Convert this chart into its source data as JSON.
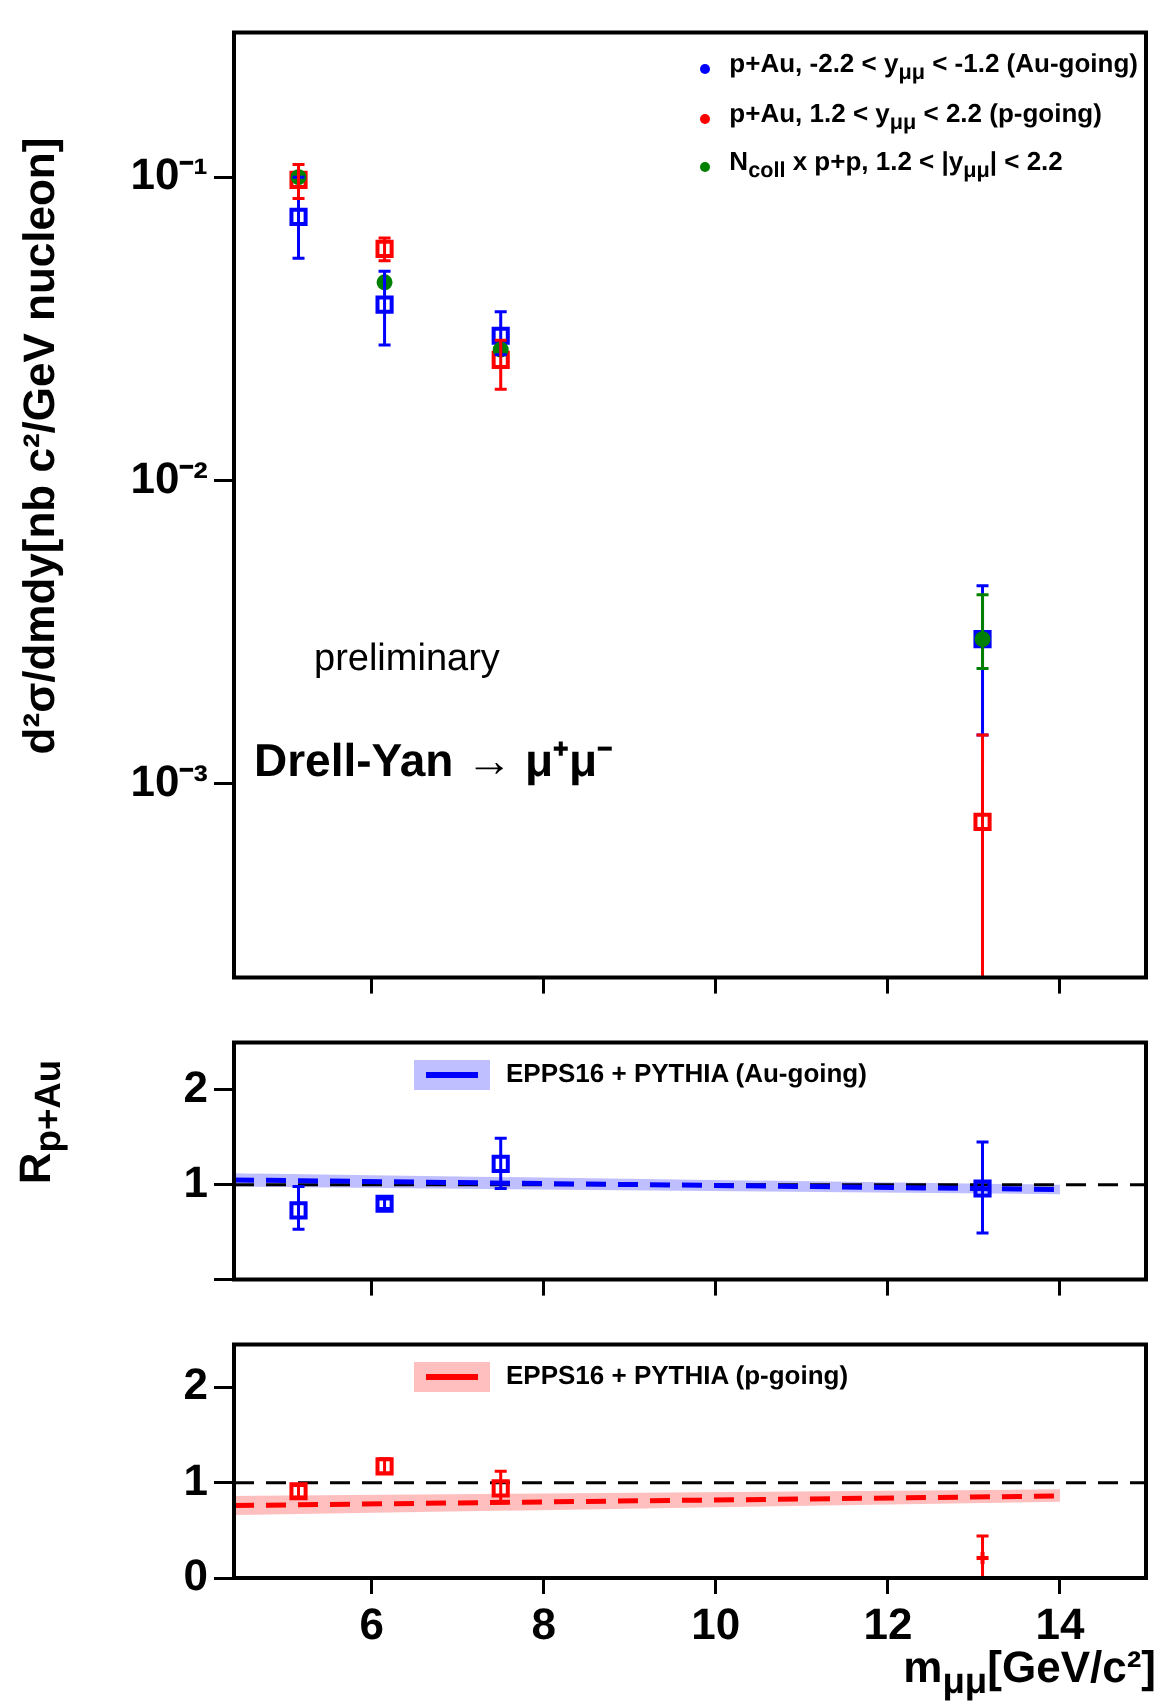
{
  "chart_data": [
    {
      "type": "scatter",
      "ylabel": "d²σ/dmdy[nb c²/GeV nucleon]",
      "log": "y",
      "xlim": [
        4.4,
        15
      ],
      "xticks": [
        6,
        8,
        10,
        12,
        14
      ],
      "ylim": [
        0.00023,
        0.3
      ],
      "yticks": [
        {
          "value": 0.001,
          "label": "10⁻³"
        },
        {
          "value": 0.01,
          "label": "10⁻²"
        },
        {
          "value": 0.1,
          "label": "10⁻¹"
        }
      ],
      "tick_labels": "y",
      "legend": "top right",
      "grid": false,
      "annotations": [
        "preliminary",
        "Drell-Yan → μ⁺μ⁻"
      ],
      "series": [
        {
          "name": "p+Au, -2.2 < y$_{μμ}$ < -1.2 (Au-going)",
          "color": "#0000ff",
          "marker": "square",
          "x": [
            5.15,
            6.15,
            7.5,
            13.1
          ],
          "values": [
            0.074,
            0.038,
            0.03,
            0.003
          ],
          "errors": [
            [
              0.054,
              0.1
            ],
            [
              0.028,
              0.049
            ],
            [
              0.026,
              0.036
            ],
            [
              0.00145,
              0.0045
            ]
          ]
        },
        {
          "name": "p+Au, 1.2 < y$_{μμ}$ < 2.2 (p-going)",
          "color": "#ff0000",
          "marker": "square",
          "x": [
            5.15,
            6.15,
            7.5,
            13.1
          ],
          "values": [
            0.098,
            0.058,
            0.025,
            0.00075
          ],
          "errors": [
            [
              0.085,
              0.11
            ],
            [
              0.053,
              0.063
            ],
            [
              0.02,
              0.029
            ],
            [
              0.00023,
              0.00145
            ]
          ]
        },
        {
          "name": "N$_{coll}$ x p+p, 1.2 < |y$_{μμ}$| < 2.2",
          "color": "#008000",
          "marker": "circle",
          "x": [
            5.15,
            6.15,
            7.5,
            13.1
          ],
          "values": [
            0.1,
            0.045,
            0.027,
            0.003
          ],
          "errors": [
            null,
            null,
            null,
            [
              0.0024,
              0.0042
            ]
          ]
        }
      ]
    },
    {
      "type": "scatter",
      "ylabel": "R$_{p+Au}$",
      "xlim": [
        4.4,
        15
      ],
      "xticks": [
        6,
        8,
        10,
        12,
        14
      ],
      "ylim": [
        0,
        2.5
      ],
      "yticks": [
        {
          "value": 0,
          "label": null
        },
        1,
        2
      ],
      "tick_labels": "y",
      "legend": "top",
      "grid": false,
      "ref_lines": [
        {
          "axis": "y",
          "value": 1,
          "color": "#000000",
          "line_style": "dashed"
        }
      ],
      "series": [
        {
          "type": "line",
          "name": "EPPS16 + PYTHIA (Au-going)",
          "color": "#0000ff",
          "marker": "none",
          "line_style": "dashed",
          "x": [
            4.4,
            14
          ],
          "values": [
            1.05,
            0.95
          ],
          "lower": [
            0.98,
            0.9
          ],
          "upper": [
            1.12,
            1.0
          ]
        },
        {
          "color": "#0000ff",
          "marker": "square",
          "x": [
            5.15,
            6.15,
            7.5,
            13.1
          ],
          "values": [
            0.73,
            0.8,
            1.22,
            0.96
          ],
          "errors": [
            [
              0.53,
              0.98
            ],
            [
              0.75,
              0.85
            ],
            [
              0.96,
              1.49
            ],
            [
              0.49,
              1.45
            ]
          ]
        }
      ]
    },
    {
      "type": "scatter",
      "xlabel": "m$_{μμ}$[GeV/c²]",
      "xlim": [
        4.4,
        15
      ],
      "xticks": [
        6,
        8,
        10,
        12,
        14
      ],
      "ylim": [
        0,
        2.45
      ],
      "yticks": [
        0,
        1,
        2
      ],
      "legend": "top",
      "grid": false,
      "ref_lines": [
        {
          "axis": "y",
          "value": 1,
          "color": "#000000",
          "line_style": "dashed"
        }
      ],
      "series": [
        {
          "type": "line",
          "name": "EPPS16 + PYTHIA (p-going)",
          "color": "#ff0000",
          "marker": "none",
          "line_style": "dashed",
          "x": [
            4.4,
            14
          ],
          "values": [
            0.76,
            0.86
          ],
          "lower": [
            0.66,
            0.8
          ],
          "upper": [
            0.86,
            0.93
          ]
        },
        {
          "color": "#ff0000",
          "marker": "square",
          "x": [
            5.15,
            6.15,
            7.5
          ],
          "values": [
            0.91,
            1.17,
            0.94
          ],
          "errors": [
            [
              0.85,
              0.97
            ],
            [
              1.1,
              1.25
            ],
            [
              0.79,
              1.12
            ]
          ]
        },
        {
          "color": "#ff0000",
          "marker": "cross",
          "x": [
            13.1
          ],
          "values": [
            0.21
          ],
          "errors": [
            [
              0,
              0.44
            ]
          ]
        }
      ]
    }
  ]
}
